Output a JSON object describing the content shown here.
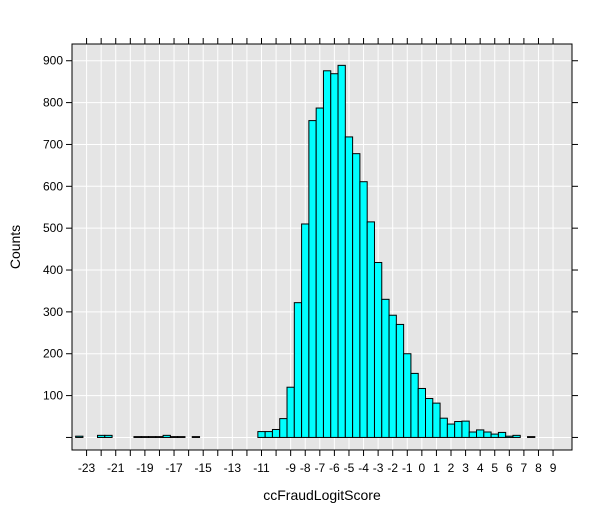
{
  "chart_data": {
    "type": "bar",
    "subtype": "histogram",
    "xlabel": "ccFraudLogitScore",
    "ylabel": "Counts",
    "bin_width": 0.5,
    "bin_centers": [
      -23.5,
      -23,
      -22.5,
      -22,
      -21.5,
      -21,
      -20.5,
      -20,
      -19.5,
      -19,
      -18.5,
      -18,
      -17.5,
      -17,
      -16.5,
      -16,
      -15.5,
      -15,
      -14.5,
      -14,
      -13.5,
      -13,
      -12.5,
      -12,
      -11.5,
      -11,
      -10.5,
      -10,
      -9.5,
      -9,
      -8.5,
      -8,
      -7.5,
      -7,
      -6.5,
      -6,
      -5.5,
      -5,
      -4.5,
      -4,
      -3.5,
      -3,
      -2.5,
      -2,
      -1.5,
      -1,
      -0.5,
      0,
      0.5,
      1,
      1.5,
      2,
      2.5,
      3,
      3.5,
      4,
      4.5,
      5,
      5.5,
      6,
      6.5,
      7,
      7.5,
      8,
      8.5,
      9,
      9.5
    ],
    "values": [
      3,
      0,
      0,
      5,
      5,
      0,
      0,
      0,
      2,
      2,
      2,
      2,
      5,
      2,
      2,
      0,
      2,
      0,
      0,
      0,
      0,
      0,
      0,
      0,
      0,
      14,
      14,
      19,
      45,
      120,
      322,
      510,
      757,
      787,
      876,
      869,
      889,
      718,
      678,
      611,
      515,
      418,
      330,
      292,
      270,
      200,
      153,
      117,
      93,
      82,
      46,
      32,
      38,
      39,
      13,
      18,
      13,
      8,
      12,
      3,
      5,
      0,
      2,
      0,
      0,
      0,
      0
    ],
    "xlim": [
      -24,
      10.3
    ],
    "ylim": [
      -30,
      940
    ],
    "x_ticks": [
      -23,
      -22,
      -21,
      -20,
      -19,
      -18,
      -17,
      -16,
      -15,
      -14,
      -13,
      -12,
      -11,
      -10,
      -9,
      -8,
      -7,
      -6,
      -5,
      -4,
      -3,
      -2,
      -1,
      0,
      1,
      2,
      3,
      4,
      5,
      6,
      7,
      8,
      9
    ],
    "x_tick_labels": [
      "-23",
      "",
      "-21",
      "",
      "-19",
      "",
      "-17",
      "",
      "-15",
      "",
      "-13",
      "",
      "-11",
      "",
      "-9",
      "-8",
      "-7",
      "-6",
      "-5",
      "-4",
      "-3",
      "-2",
      "-1",
      "0",
      "1",
      "2",
      "3",
      "4",
      "5",
      "6",
      "7",
      "8",
      "9"
    ],
    "y_ticks": [
      0,
      100,
      200,
      300,
      400,
      500,
      600,
      700,
      800,
      900
    ],
    "y_tick_labels": [
      "",
      "100",
      "200",
      "300",
      "400",
      "500",
      "600",
      "700",
      "800",
      "900"
    ],
    "grid": true,
    "colors": {
      "bar_fill": "#00FFFF",
      "bar_stroke": "#000000",
      "panel_bg": "#E5E5E5",
      "grid": "#FFFFFF"
    }
  }
}
